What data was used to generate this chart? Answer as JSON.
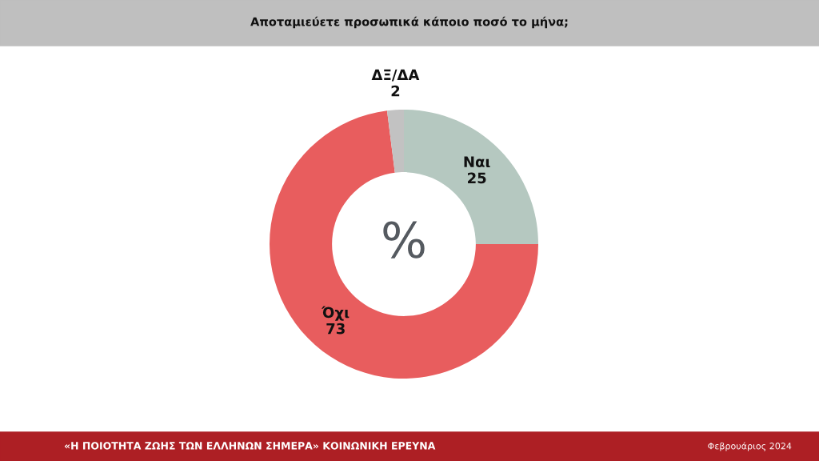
{
  "chart_data": {
    "type": "donut",
    "title": "Αποταμιεύετε προσωπικά κάποιο ποσό το μήνα;",
    "categories": [
      "Ναι",
      "Όχι",
      "ΔΞ/ΔΑ"
    ],
    "values": [
      25,
      73,
      2
    ],
    "colors": [
      "#b5c8c0",
      "#e85d5e",
      "#c2c2c2"
    ],
    "data_labels": true,
    "legend": false,
    "annotations": [
      "%",
      "«Η ΠΟΙΟΤΗΤΑ ΖΩΗΣ ΤΩΝ ΕΛΛΗΝΩΝ ΣΗΜΕΡΑ» ΚΟΙΝΩΝΙΚΗ ΕΡΕΥΝΑ",
      "Φεβρουάριος 2024"
    ]
  }
}
